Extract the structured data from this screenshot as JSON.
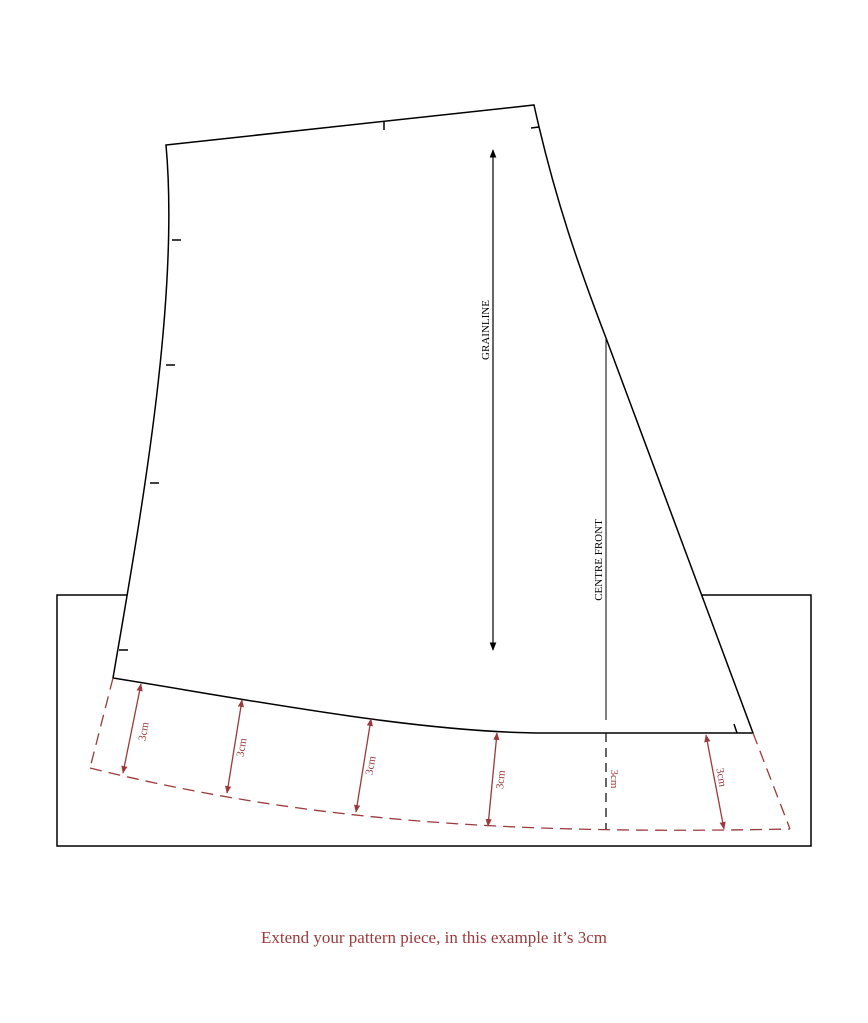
{
  "labels": {
    "grainline": "GRAINLINE",
    "centre_front": "CENTRE FRONT"
  },
  "measurements": [
    "3cm",
    "3cm",
    "3cm",
    "3cm",
    "3cm",
    "3cm"
  ],
  "caption": "Extend your pattern piece, in this example it’s 3cm"
}
